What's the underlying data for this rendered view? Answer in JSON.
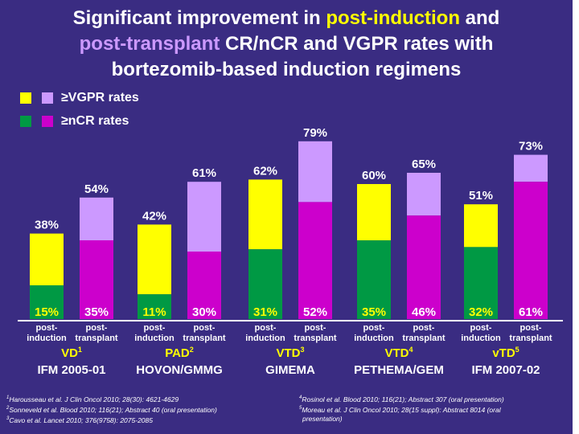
{
  "title": {
    "line1_pre": "Significant improvement in ",
    "line1_highlight": "post-induction",
    "line1_post": " and",
    "line2_highlight": "post-transplant",
    "line2_post": " CR/nCR and VGPR rates with",
    "line3": "bortezomib-based induction regimens"
  },
  "legend": {
    "vgpr_label": "≥VGPR rates",
    "ncr_label": "≥nCR rates"
  },
  "colors": {
    "background": "#3A2C82",
    "post_induction_vgpr": "#FFFF00",
    "post_transplant_vgpr": "#CC99FF",
    "post_induction_ncr": "#009944",
    "post_transplant_ncr": "#CC00CC"
  },
  "chart_data": {
    "type": "bar",
    "title": "",
    "ylim": [
      0,
      100
    ],
    "bar_labels": [
      "post-induction",
      "post-transplant"
    ],
    "groups": [
      {
        "regimen": "VD",
        "ref": "1",
        "study": "IFM 2005-01",
        "bars": [
          {
            "stage": "post-induction",
            "vgpr": 38,
            "ncr": 15
          },
          {
            "stage": "post-transplant",
            "vgpr": 54,
            "ncr": 35
          }
        ]
      },
      {
        "regimen": "PAD",
        "ref": "2",
        "study": "HOVON/GMMG",
        "bars": [
          {
            "stage": "post-induction",
            "vgpr": 42,
            "ncr": 11
          },
          {
            "stage": "post-transplant",
            "vgpr": 61,
            "ncr": 30
          }
        ]
      },
      {
        "regimen": "VTD",
        "ref": "3",
        "study": "GIMEMA",
        "bars": [
          {
            "stage": "post-induction",
            "vgpr": 62,
            "ncr": 31
          },
          {
            "stage": "post-transplant",
            "vgpr": 79,
            "ncr": 52
          }
        ]
      },
      {
        "regimen": "VTD",
        "ref": "4",
        "study": "PETHEMA/GEM",
        "bars": [
          {
            "stage": "post-induction",
            "vgpr": 60,
            "ncr": 35
          },
          {
            "stage": "post-transplant",
            "vgpr": 65,
            "ncr": 46
          }
        ]
      },
      {
        "regimen": "vTD",
        "ref": "5",
        "study": "IFM 2007-02",
        "bars": [
          {
            "stage": "post-induction",
            "vgpr": 51,
            "ncr": 32
          },
          {
            "stage": "post-transplant",
            "vgpr": 73,
            "ncr": 61
          }
        ]
      }
    ]
  },
  "references_left": [
    {
      "num": "1",
      "text": "Harousseau et al. J Clin Oncol 2010; 28(30): 4621-4629"
    },
    {
      "num": "2",
      "text": "Sonneveld et al. Blood 2010; 116(21); Abstract 40 (oral presentation)"
    },
    {
      "num": "3",
      "text": "Cavo et al. Lancet 2010; 376(9758): 2075-2085"
    }
  ],
  "references_right": [
    {
      "num": "4",
      "text": "Rosinol et al. Blood 2010; 116(21); Abstract 307 (oral presentation)"
    },
    {
      "num": "5",
      "text": "Moreau et al. J Clin Oncol 2010; 28(15 suppl): Abstract 8014 (oral"
    },
    {
      "num": "",
      "text": "presentation)"
    }
  ]
}
